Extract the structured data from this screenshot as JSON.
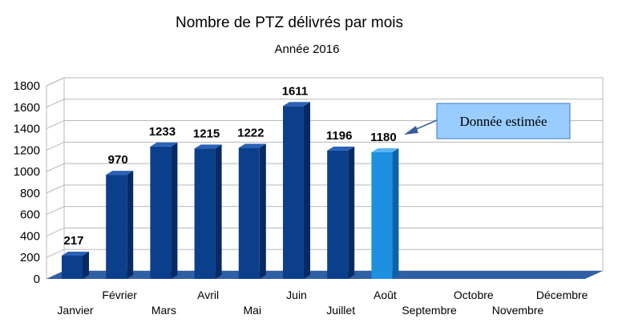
{
  "chart_data": {
    "type": "bar",
    "title": "Nombre de PTZ délivrés par mois",
    "subtitle": "Année 2016",
    "xlabel": "",
    "ylabel": "",
    "ylim": [
      0,
      1800
    ],
    "yticks": [
      0,
      200,
      400,
      600,
      800,
      1000,
      1200,
      1400,
      1600,
      1800
    ],
    "grid": true,
    "categories": [
      "Janvier",
      "Février",
      "Mars",
      "Avril",
      "Mai",
      "Juin",
      "Juillet",
      "Août",
      "Septembre",
      "Octobre",
      "Novembre",
      "Décembre"
    ],
    "values": [
      217,
      970,
      1233,
      1215,
      1222,
      1611,
      1196,
      1180,
      null,
      null,
      null,
      null
    ],
    "estimated_index": 7,
    "annotation": "Donnée estimée",
    "colors": {
      "bar": "#0b3f8c",
      "bar_side": "#062a63",
      "bar_top": "#2a62b8",
      "estimated_bar": "#1e90e0",
      "estimated_side": "#0a62a8",
      "estimated_top": "#5ab4f0",
      "floor": "#2f5fa5",
      "grid": "#b8b8b8",
      "annotation_fill": "#99ccff",
      "annotation_border": "#3a78c0",
      "arrow": "#3a5fa0"
    }
  }
}
